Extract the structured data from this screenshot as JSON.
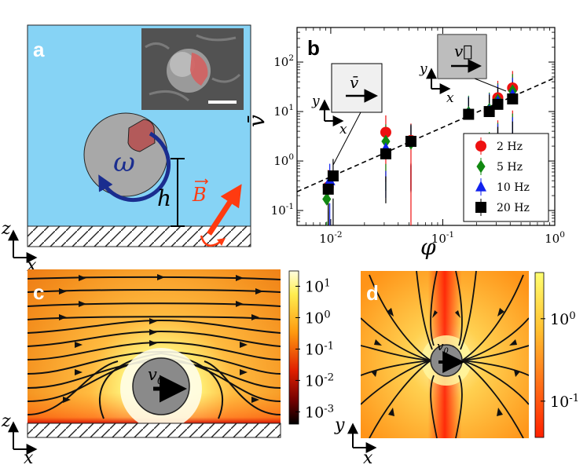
{
  "panel_labels": {
    "a": "a",
    "b": "b",
    "c": "c",
    "d": "d"
  },
  "panel_a": {
    "omega": "ω",
    "h": "h",
    "B": "B",
    "axis_z": "z",
    "axis_x": "x",
    "colors": {
      "fluid": "#86d3f5",
      "particle": "#a8a8a8",
      "patch": "#b35a5a",
      "arrow": "#ff3a10",
      "rotation": "#1a2d8f"
    }
  },
  "panel_b": {
    "ylabel": "v̄",
    "xlabel": "φ",
    "inset_left": {
      "v": "v̄",
      "y": "y",
      "x": "x"
    },
    "inset_right": {
      "v": "v⃗",
      "y": "y",
      "x": "x"
    }
  },
  "panel_c": {
    "v0": "v",
    "v0_sub": "0",
    "axis_z": "z",
    "axis_x": "x",
    "colorbar_ticks": [
      {
        "base": "10",
        "exp": "1"
      },
      {
        "base": "10",
        "exp": "0"
      },
      {
        "base": "10",
        "exp": "-1"
      },
      {
        "base": "10",
        "exp": "-2"
      },
      {
        "base": "10",
        "exp": "-3"
      }
    ]
  },
  "panel_d": {
    "v0": "v",
    "v0_sub": "0",
    "axis_y": "y",
    "axis_x": "x",
    "colorbar_ticks": [
      {
        "base": "10",
        "exp": "0"
      },
      {
        "base": "10",
        "exp": "-1"
      }
    ]
  },
  "chart_data": {
    "type": "scatter",
    "title": "",
    "xlabel": "φ",
    "ylabel": "v̄",
    "xscale": "log",
    "yscale": "log",
    "xlim": [
      0.005,
      1.0
    ],
    "ylim": [
      0.05,
      500
    ],
    "grid": false,
    "legend_position": "lower-right",
    "x_ticks": [
      {
        "base": "10",
        "exp": "-2",
        "value": 0.01
      },
      {
        "base": "10",
        "exp": "-1",
        "value": 0.1
      },
      {
        "base": "10",
        "exp": "0",
        "value": 1
      }
    ],
    "y_ticks": [
      {
        "base": "10",
        "exp": "-1",
        "value": 0.1
      },
      {
        "base": "10",
        "exp": "0",
        "value": 1
      },
      {
        "base": "10",
        "exp": "1",
        "value": 10
      },
      {
        "base": "10",
        "exp": "2",
        "value": 100
      }
    ],
    "fit_line": {
      "style": "dashed",
      "points": [
        [
          0.005,
          0.24
        ],
        [
          1.0,
          48
        ]
      ]
    },
    "series": [
      {
        "name": "2 Hz",
        "marker": "circle",
        "color": "#ee1111",
        "x": [
          0.0095,
          0.031,
          0.052,
          0.26,
          0.31,
          0.42
        ],
        "y": [
          0.3,
          3.8,
          2.6,
          10.0,
          19.0,
          30.0
        ]
      },
      {
        "name": "5 Hz",
        "marker": "diamond",
        "color": "#118811",
        "x": [
          0.0092,
          0.031,
          0.052,
          0.17,
          0.26,
          0.31,
          0.42
        ],
        "y": [
          0.17,
          2.5,
          2.3,
          9.5,
          11.0,
          17.0,
          26.0
        ]
      },
      {
        "name": "10 Hz",
        "marker": "triangle",
        "color": "#1122ee",
        "x": [
          0.0098,
          0.031,
          0.052,
          0.17,
          0.26,
          0.31,
          0.42
        ],
        "y": [
          0.4,
          1.8,
          2.4,
          9.0,
          10.5,
          16.0,
          22.0
        ]
      },
      {
        "name": "20 Hz",
        "marker": "square",
        "color": "#000000",
        "x": [
          0.0095,
          0.0105,
          0.031,
          0.052,
          0.17,
          0.26,
          0.31,
          0.42
        ],
        "y": [
          0.27,
          0.5,
          1.4,
          2.5,
          8.8,
          10.0,
          14.0,
          18.0
        ]
      }
    ]
  }
}
